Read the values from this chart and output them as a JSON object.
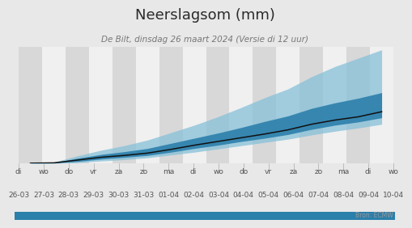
{
  "title": "Neerslagsom (mm)",
  "subtitle": "De Bilt, dinsdag 26 maart 2024 (Versie di 12 uur)",
  "source": "Bron: ECMW",
  "tick_labels_day": [
    "di",
    "wo",
    "do",
    "vr",
    "za",
    "zo",
    "ma",
    "di",
    "wo",
    "do",
    "vr",
    "za",
    "zo",
    "ma",
    "di",
    "wo"
  ],
  "tick_labels_date": [
    "26-03",
    "27-03",
    "28-03",
    "29-03",
    "30-03",
    "31-03",
    "01-04",
    "02-04",
    "03-04",
    "04-04",
    "05-04",
    "06-04",
    "07-04",
    "08-04",
    "09-04",
    "10-04"
  ],
  "n_points": 16,
  "median": [
    0.2,
    0.5,
    3.5,
    6.5,
    8.5,
    11.0,
    15.0,
    19.5,
    23.5,
    27.5,
    31.5,
    36.0,
    42.0,
    46.5,
    50.0,
    55.5
  ],
  "p25": [
    0.1,
    0.3,
    2.0,
    4.5,
    6.5,
    8.5,
    12.0,
    16.0,
    19.5,
    23.5,
    27.0,
    31.0,
    36.5,
    41.0,
    44.5,
    49.0
  ],
  "p75": [
    0.3,
    0.8,
    5.5,
    9.5,
    12.5,
    16.0,
    21.5,
    27.0,
    32.5,
    38.5,
    45.0,
    51.0,
    59.0,
    65.0,
    70.0,
    76.0
  ],
  "p10": [
    0.0,
    0.1,
    0.8,
    2.5,
    4.0,
    6.0,
    9.0,
    12.0,
    15.5,
    19.0,
    22.5,
    26.0,
    30.5,
    34.5,
    38.0,
    42.0
  ],
  "p90": [
    0.5,
    1.2,
    8.0,
    14.0,
    19.0,
    25.0,
    33.0,
    41.0,
    50.0,
    60.0,
    70.5,
    80.0,
    93.0,
    104.0,
    113.0,
    122.0
  ],
  "bg_color": "#e8e8e8",
  "plot_bg_odd": "#d8d8d8",
  "plot_bg_even": "#f0f0f0",
  "band_color_dark": "#2b7fab",
  "band_color_light": "#85c0d8",
  "color_median": "#111111",
  "title_fontsize": 13,
  "subtitle_fontsize": 7.5,
  "tick_fontsize": 6.5,
  "source_fontsize": 5.5
}
